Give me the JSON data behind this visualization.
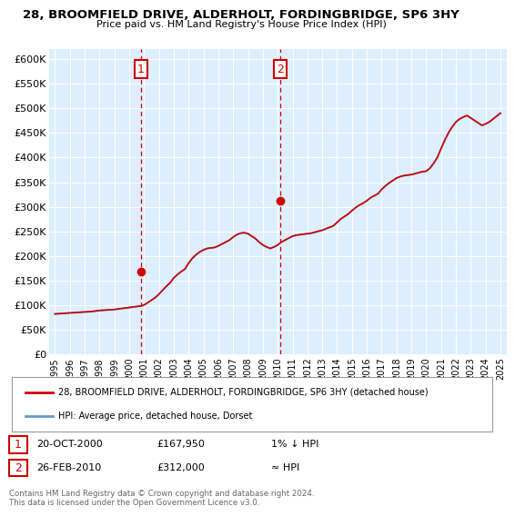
{
  "title": "28, BROOMFIELD DRIVE, ALDERHOLT, FORDINGBRIDGE, SP6 3HY",
  "subtitle": "Price paid vs. HM Land Registry's House Price Index (HPI)",
  "legend_line1": "28, BROOMFIELD DRIVE, ALDERHOLT, FORDINGBRIDGE, SP6 3HY (detached house)",
  "legend_line2": "HPI: Average price, detached house, Dorset",
  "annotation1_date": "20-OCT-2000",
  "annotation1_price": "£167,950",
  "annotation1_note": "1% ↓ HPI",
  "annotation2_date": "26-FEB-2010",
  "annotation2_price": "£312,000",
  "annotation2_note": "≈ HPI",
  "footer": "Contains HM Land Registry data © Crown copyright and database right 2024.\nThis data is licensed under the Open Government Licence v3.0.",
  "hpi_color": "#6699cc",
  "price_color": "#cc0000",
  "annotation_color": "#cc0000",
  "bg_color": "#ddeeff",
  "ylim": [
    0,
    620000
  ],
  "yticks": [
    0,
    50000,
    100000,
    150000,
    200000,
    250000,
    300000,
    350000,
    400000,
    450000,
    500000,
    550000,
    600000
  ],
  "years_x": [
    1995.0,
    1995.25,
    1995.5,
    1995.75,
    1996.0,
    1996.25,
    1996.5,
    1996.75,
    1997.0,
    1997.25,
    1997.5,
    1997.75,
    1998.0,
    1998.25,
    1998.5,
    1998.75,
    1999.0,
    1999.25,
    1999.5,
    1999.75,
    2000.0,
    2000.25,
    2000.5,
    2000.75,
    2001.0,
    2001.25,
    2001.5,
    2001.75,
    2002.0,
    2002.25,
    2002.5,
    2002.75,
    2003.0,
    2003.25,
    2003.5,
    2003.75,
    2004.0,
    2004.25,
    2004.5,
    2004.75,
    2005.0,
    2005.25,
    2005.5,
    2005.75,
    2006.0,
    2006.25,
    2006.5,
    2006.75,
    2007.0,
    2007.25,
    2007.5,
    2007.75,
    2008.0,
    2008.25,
    2008.5,
    2008.75,
    2009.0,
    2009.25,
    2009.5,
    2009.75,
    2010.0,
    2010.25,
    2010.5,
    2010.75,
    2011.0,
    2011.25,
    2011.5,
    2011.75,
    2012.0,
    2012.25,
    2012.5,
    2012.75,
    2013.0,
    2013.25,
    2013.5,
    2013.75,
    2014.0,
    2014.25,
    2014.5,
    2014.75,
    2015.0,
    2015.25,
    2015.5,
    2015.75,
    2016.0,
    2016.25,
    2016.5,
    2016.75,
    2017.0,
    2017.25,
    2017.5,
    2017.75,
    2018.0,
    2018.25,
    2018.5,
    2018.75,
    2019.0,
    2019.25,
    2019.5,
    2019.75,
    2020.0,
    2020.25,
    2020.5,
    2020.75,
    2021.0,
    2021.25,
    2021.5,
    2021.75,
    2022.0,
    2022.25,
    2022.5,
    2022.75,
    2023.0,
    2023.25,
    2023.5,
    2023.75,
    2024.0,
    2024.25,
    2024.5,
    2024.75,
    2025.0
  ],
  "hpi_values": [
    82000,
    82500,
    83000,
    83500,
    84000,
    84500,
    85000,
    85500,
    86000,
    86500,
    87000,
    88000,
    89000,
    89500,
    90000,
    90500,
    91000,
    92000,
    93000,
    94000,
    95000,
    96000,
    97000,
    98000,
    100000,
    105000,
    110000,
    115000,
    122000,
    130000,
    138000,
    145000,
    155000,
    162000,
    168000,
    173000,
    185000,
    195000,
    202000,
    208000,
    212000,
    215000,
    216000,
    217000,
    220000,
    224000,
    228000,
    232000,
    238000,
    243000,
    246000,
    247000,
    245000,
    240000,
    235000,
    228000,
    222000,
    218000,
    215000,
    218000,
    222000,
    228000,
    232000,
    236000,
    240000,
    242000,
    243000,
    244000,
    245000,
    246000,
    248000,
    250000,
    252000,
    255000,
    258000,
    261000,
    268000,
    275000,
    280000,
    285000,
    292000,
    298000,
    303000,
    307000,
    312000,
    318000,
    322000,
    326000,
    335000,
    342000,
    348000,
    353000,
    358000,
    361000,
    363000,
    364000,
    365000,
    367000,
    369000,
    371000,
    372000,
    378000,
    388000,
    400000,
    418000,
    435000,
    450000,
    462000,
    472000,
    478000,
    482000,
    485000,
    480000,
    475000,
    470000,
    465000,
    468000,
    472000,
    478000,
    484000,
    490000
  ],
  "price_values": [
    82500,
    83000,
    83500,
    84000,
    84500,
    85000,
    85500,
    86000,
    86500,
    87000,
    87500,
    88500,
    89500,
    90000,
    90500,
    91000,
    91500,
    92500,
    93500,
    94500,
    95500,
    96500,
    97500,
    98500,
    100500,
    105500,
    110500,
    115500,
    122500,
    130500,
    138500,
    145500,
    155500,
    162500,
    168500,
    173500,
    185500,
    195500,
    202500,
    208500,
    212500,
    215500,
    216500,
    217500,
    220500,
    224500,
    228500,
    232500,
    238500,
    243500,
    246500,
    247500,
    245500,
    240500,
    235500,
    228500,
    222500,
    218500,
    215500,
    218500,
    222500,
    228500,
    232500,
    236500,
    240500,
    242500,
    243500,
    244500,
    245500,
    246500,
    248500,
    250500,
    252500,
    255500,
    258500,
    261500,
    268500,
    275500,
    280500,
    285500,
    292500,
    298500,
    303500,
    307500,
    312500,
    318500,
    322500,
    326500,
    335500,
    342500,
    348500,
    353500,
    358500,
    361500,
    363500,
    364500,
    365500,
    367500,
    369500,
    371500,
    372500,
    378500,
    388500,
    400500,
    418500,
    435500,
    450500,
    462500,
    472500,
    478500,
    482500,
    485500,
    480500,
    475500,
    470500,
    465500,
    468500,
    472500,
    478500,
    484500,
    490500
  ],
  "sale1_x": 2000.8,
  "sale1_y": 167950,
  "sale2_x": 2010.15,
  "sale2_y": 312000,
  "xlim_left": 1994.6,
  "xlim_right": 2025.4
}
